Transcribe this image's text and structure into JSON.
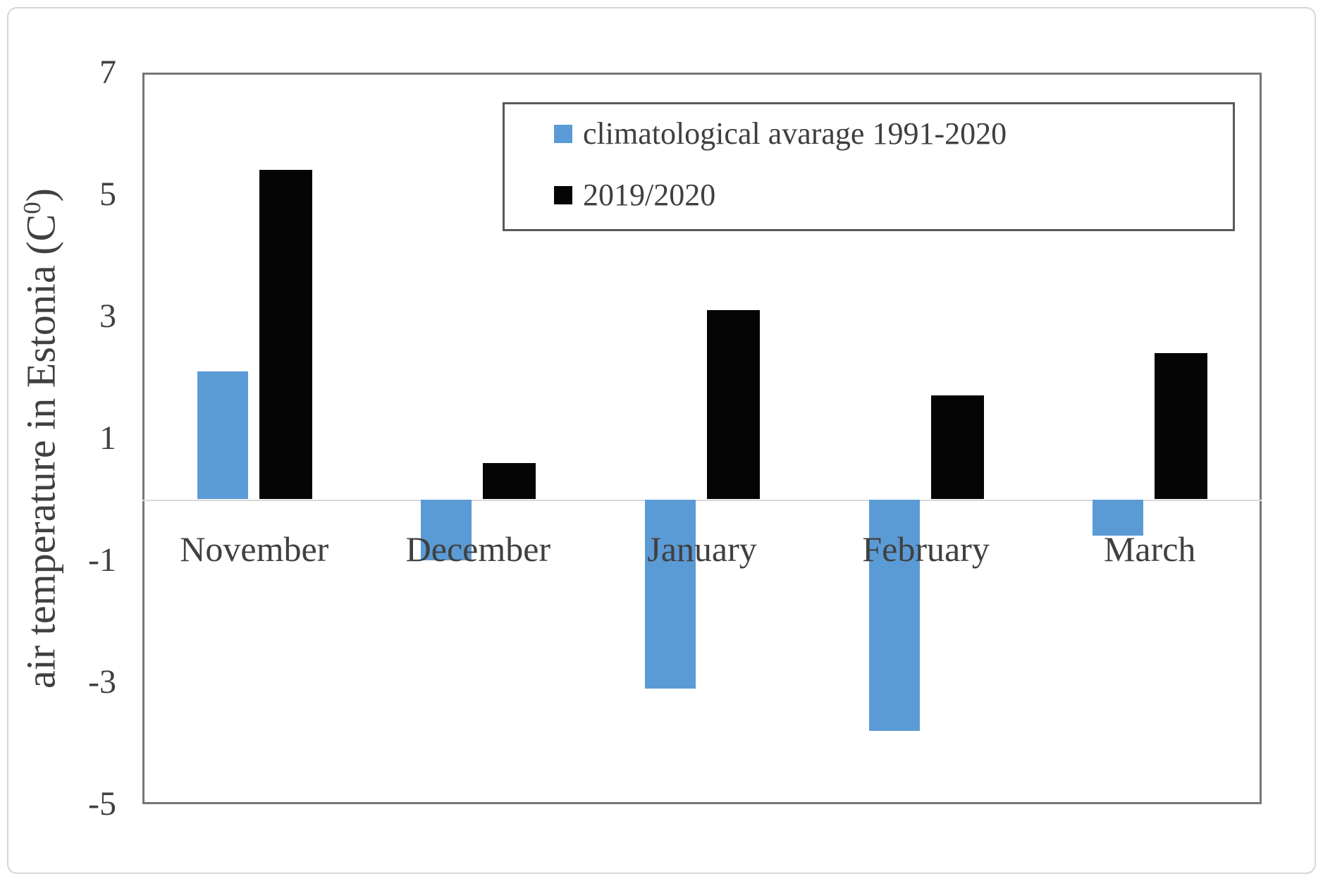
{
  "figure": {
    "y_axis": {
      "title_prefix": "air temperature in Estonia (C",
      "title_sup": "0",
      "title_suffix": ")"
    }
  },
  "chart_data": {
    "type": "bar",
    "title": "",
    "xlabel": "",
    "ylabel": "air temperature in Estonia (C 0)",
    "categories": [
      "November",
      "December",
      "January",
      "February",
      "March"
    ],
    "series": [
      {
        "name": "climatological avarage 1991-2020",
        "color": "#5B9BD5",
        "values": [
          2.1,
          -1.0,
          -3.1,
          -3.8,
          -0.6
        ]
      },
      {
        "name": "2019/2020",
        "color": "#050505",
        "values": [
          5.4,
          0.6,
          3.1,
          1.7,
          2.4
        ]
      }
    ],
    "ylim": [
      -5,
      7
    ],
    "ytick_step": 2,
    "ytick_labels": [
      "7",
      "5",
      "3",
      "1",
      "-1",
      "-3",
      "-5"
    ],
    "grid": false,
    "zero_line": true,
    "legend_position": "top-right-inside"
  }
}
